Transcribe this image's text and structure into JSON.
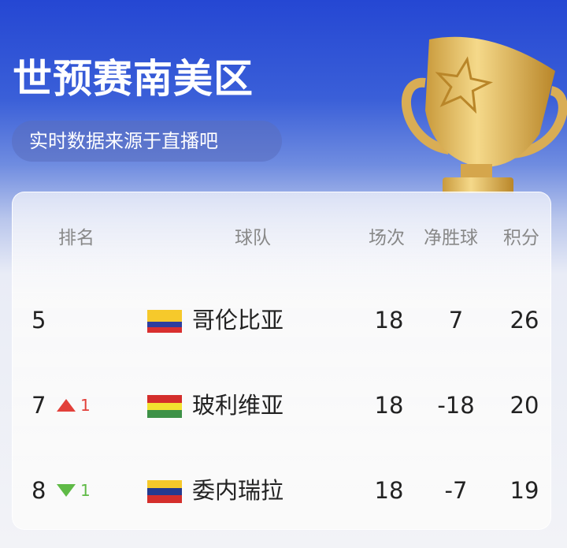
{
  "header": {
    "title": "世预赛南美区",
    "subtitle": "实时数据来源于直播吧"
  },
  "table": {
    "columns": {
      "rank": "排名",
      "team": "球队",
      "played": "场次",
      "goal_diff": "净胜球",
      "points": "积分"
    },
    "rows": [
      {
        "rank": "5",
        "change": "",
        "direction": "",
        "team": "哥伦比亚",
        "flag": [
          "#f6c92b",
          "#f6c92b",
          "#2d3d9e",
          "#d92f2f"
        ],
        "played": "18",
        "goal_diff": "7",
        "points": "26"
      },
      {
        "rank": "7",
        "change": "1",
        "direction": "up",
        "team": "玻利维亚",
        "flag": [
          "#d42e2b",
          "#f2e230",
          "#3d9147"
        ],
        "played": "18",
        "goal_diff": "-18",
        "points": "20"
      },
      {
        "rank": "8",
        "change": "1",
        "direction": "down",
        "team": "委内瑞拉",
        "flag": [
          "#f6c92b",
          "#243a8f",
          "#d42e2b"
        ],
        "played": "18",
        "goal_diff": "-7",
        "points": "19"
      }
    ]
  },
  "colors": {
    "up": "#e2403a",
    "down": "#5fba46",
    "header_blue": "#2547d3"
  }
}
